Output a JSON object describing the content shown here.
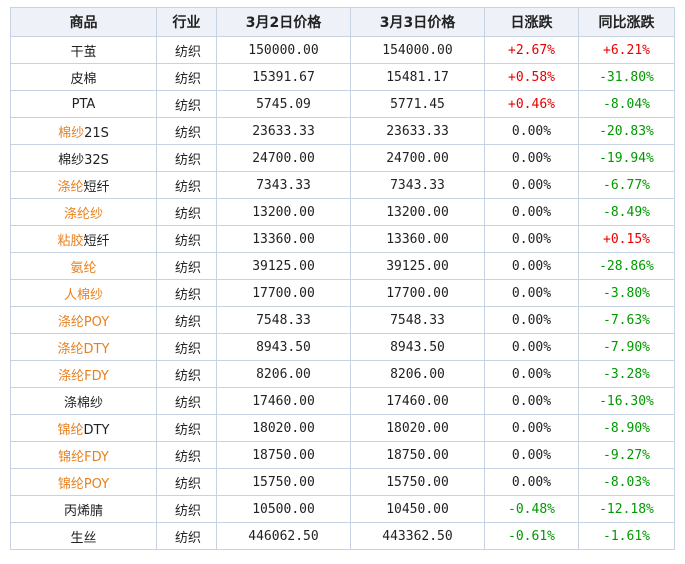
{
  "headers": [
    "商品",
    "行业",
    "3月2日价格",
    "3月3日价格",
    "日涨跌",
    "同比涨跌"
  ],
  "rows": [
    {
      "name_link": "",
      "name_rest": "干茧",
      "industry": "纺织",
      "p1": "150000.00",
      "p2": "154000.00",
      "day": "+2.67%",
      "day_dir": "pos",
      "yoy": "+6.21%",
      "yoy_dir": "pos"
    },
    {
      "name_link": "",
      "name_rest": "皮棉",
      "industry": "纺织",
      "p1": "15391.67",
      "p2": "15481.17",
      "day": "+0.58%",
      "day_dir": "pos",
      "yoy": "-31.80%",
      "yoy_dir": "neg"
    },
    {
      "name_link": "",
      "name_rest": "PTA",
      "industry": "纺织",
      "p1": "5745.09",
      "p2": "5771.45",
      "day": "+0.46%",
      "day_dir": "pos",
      "yoy": "-8.04%",
      "yoy_dir": "neg"
    },
    {
      "name_link": "棉纱",
      "name_rest": "21S",
      "industry": "纺织",
      "p1": "23633.33",
      "p2": "23633.33",
      "day": "0.00%",
      "day_dir": "neu",
      "yoy": "-20.83%",
      "yoy_dir": "neg"
    },
    {
      "name_link": "",
      "name_rest": "棉纱32S",
      "industry": "纺织",
      "p1": "24700.00",
      "p2": "24700.00",
      "day": "0.00%",
      "day_dir": "neu",
      "yoy": "-19.94%",
      "yoy_dir": "neg"
    },
    {
      "name_link": "涤纶",
      "name_rest": "短纤",
      "industry": "纺织",
      "p1": "7343.33",
      "p2": "7343.33",
      "day": "0.00%",
      "day_dir": "neu",
      "yoy": "-6.77%",
      "yoy_dir": "neg"
    },
    {
      "name_link": "涤纶纱",
      "name_rest": "",
      "industry": "纺织",
      "p1": "13200.00",
      "p2": "13200.00",
      "day": "0.00%",
      "day_dir": "neu",
      "yoy": "-8.49%",
      "yoy_dir": "neg"
    },
    {
      "name_link": "粘胶",
      "name_rest": "短纤",
      "industry": "纺织",
      "p1": "13360.00",
      "p2": "13360.00",
      "day": "0.00%",
      "day_dir": "neu",
      "yoy": "+0.15%",
      "yoy_dir": "pos"
    },
    {
      "name_link": "氨纶",
      "name_rest": "",
      "industry": "纺织",
      "p1": "39125.00",
      "p2": "39125.00",
      "day": "0.00%",
      "day_dir": "neu",
      "yoy": "-28.86%",
      "yoy_dir": "neg"
    },
    {
      "name_link": "人棉纱",
      "name_rest": "",
      "industry": "纺织",
      "p1": "17700.00",
      "p2": "17700.00",
      "day": "0.00%",
      "day_dir": "neu",
      "yoy": "-3.80%",
      "yoy_dir": "neg"
    },
    {
      "name_link": "涤纶POY",
      "name_rest": "",
      "industry": "纺织",
      "p1": "7548.33",
      "p2": "7548.33",
      "day": "0.00%",
      "day_dir": "neu",
      "yoy": "-7.63%",
      "yoy_dir": "neg"
    },
    {
      "name_link": "涤纶DTY",
      "name_rest": "",
      "industry": "纺织",
      "p1": "8943.50",
      "p2": "8943.50",
      "day": "0.00%",
      "day_dir": "neu",
      "yoy": "-7.90%",
      "yoy_dir": "neg"
    },
    {
      "name_link": "涤纶FDY",
      "name_rest": "",
      "industry": "纺织",
      "p1": "8206.00",
      "p2": "8206.00",
      "day": "0.00%",
      "day_dir": "neu",
      "yoy": "-3.28%",
      "yoy_dir": "neg"
    },
    {
      "name_link": "",
      "name_rest": "涤棉纱",
      "industry": "纺织",
      "p1": "17460.00",
      "p2": "17460.00",
      "day": "0.00%",
      "day_dir": "neu",
      "yoy": "-16.30%",
      "yoy_dir": "neg"
    },
    {
      "name_link": "锦纶",
      "name_rest": "DTY",
      "industry": "纺织",
      "p1": "18020.00",
      "p2": "18020.00",
      "day": "0.00%",
      "day_dir": "neu",
      "yoy": "-8.90%",
      "yoy_dir": "neg"
    },
    {
      "name_link": "锦纶FDY",
      "name_rest": "",
      "industry": "纺织",
      "p1": "18750.00",
      "p2": "18750.00",
      "day": "0.00%",
      "day_dir": "neu",
      "yoy": "-9.27%",
      "yoy_dir": "neg"
    },
    {
      "name_link": "锦纶POY",
      "name_rest": "",
      "industry": "纺织",
      "p1": "15750.00",
      "p2": "15750.00",
      "day": "0.00%",
      "day_dir": "neu",
      "yoy": "-8.03%",
      "yoy_dir": "neg"
    },
    {
      "name_link": "",
      "name_rest": "丙烯腈",
      "industry": "纺织",
      "p1": "10500.00",
      "p2": "10450.00",
      "day": "-0.48%",
      "day_dir": "neg",
      "yoy": "-12.18%",
      "yoy_dir": "neg"
    },
    {
      "name_link": "",
      "name_rest": "生丝",
      "industry": "纺织",
      "p1": "446062.50",
      "p2": "443362.50",
      "day": "-0.61%",
      "day_dir": "neg",
      "yoy": "-1.61%",
      "yoy_dir": "neg"
    }
  ],
  "colors": {
    "pos": "#e60000",
    "neg": "#009900",
    "neu": "#222222",
    "link": "#e8801e",
    "header_bg": "#eef2f8",
    "border": "#c7d2e2"
  }
}
